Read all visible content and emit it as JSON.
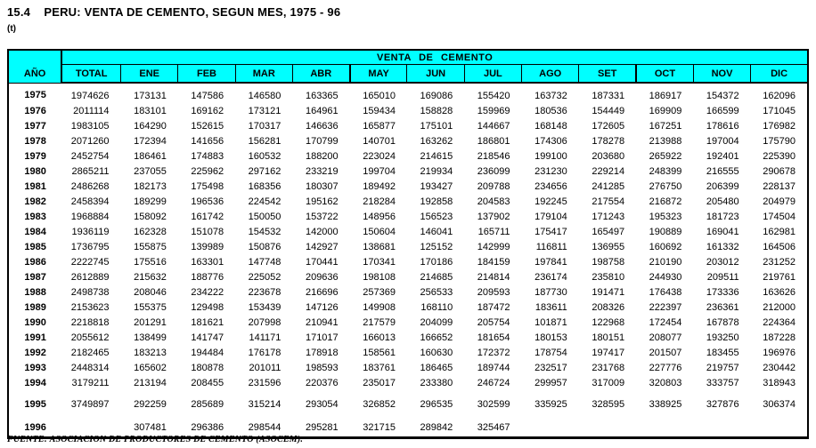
{
  "page": {
    "title": "15.4    PERU: VENTA DE CEMENTO, SEGUN MES, 1975 - 96",
    "unit": "(t)",
    "source_note": "FUENTE: ASOCIACION DE PRODUCTORES DE CEMENTO (ASOCEM)."
  },
  "colors": {
    "header_background": "#00FFFF",
    "border": "#000000",
    "text": "#000000"
  },
  "table": {
    "group_header": "VENTA DE CEMENTO",
    "columns": [
      "AÑO",
      "TOTAL",
      "ENE",
      "FEB",
      "MAR",
      "ABR",
      "MAY",
      "JUN",
      "JUL",
      "AGO",
      "SET",
      "OCT",
      "NOV",
      "DIC"
    ],
    "rows": [
      [
        "1975",
        "1974626",
        "173131",
        "147586",
        "146580",
        "163365",
        "165010",
        "169086",
        "155420",
        "163732",
        "187331",
        "186917",
        "154372",
        "162096"
      ],
      [
        "1976",
        "2011114",
        "183101",
        "169162",
        "173121",
        "164961",
        "159434",
        "158828",
        "159969",
        "180536",
        "154449",
        "169909",
        "166599",
        "171045"
      ],
      [
        "1977",
        "1983105",
        "164290",
        "152615",
        "170317",
        "146636",
        "165877",
        "175101",
        "144667",
        "168148",
        "172605",
        "167251",
        "178616",
        "176982"
      ],
      [
        "1978",
        "2071260",
        "172394",
        "141656",
        "156281",
        "170799",
        "140701",
        "163262",
        "186801",
        "174306",
        "178278",
        "213988",
        "197004",
        "175790"
      ],
      [
        "1979",
        "2452754",
        "186461",
        "174883",
        "160532",
        "188200",
        "223024",
        "214615",
        "218546",
        "199100",
        "203680",
        "265922",
        "192401",
        "225390"
      ],
      [
        "1980",
        "2865211",
        "237055",
        "225962",
        "297162",
        "233219",
        "199704",
        "219934",
        "236099",
        "231230",
        "229214",
        "248399",
        "216555",
        "290678"
      ],
      [
        "1981",
        "2486268",
        "182173",
        "175498",
        "168356",
        "180307",
        "189492",
        "193427",
        "209788",
        "234656",
        "241285",
        "276750",
        "206399",
        "228137"
      ],
      [
        "1982",
        "2458394",
        "189299",
        "196536",
        "224542",
        "195162",
        "218284",
        "192858",
        "204583",
        "192245",
        "217554",
        "216872",
        "205480",
        "204979"
      ],
      [
        "1983",
        "1968884",
        "158092",
        "161742",
        "150050",
        "153722",
        "148956",
        "156523",
        "137902",
        "179104",
        "171243",
        "195323",
        "181723",
        "174504"
      ],
      [
        "1984",
        "1936119",
        "162328",
        "151078",
        "154532",
        "142000",
        "150604",
        "146041",
        "165711",
        "175417",
        "165497",
        "190889",
        "169041",
        "162981"
      ],
      [
        "1985",
        "1736795",
        "155875",
        "139989",
        "150876",
        "142927",
        "138681",
        "125152",
        "142999",
        "116811",
        "136955",
        "160692",
        "161332",
        "164506"
      ],
      [
        "1986",
        "2222745",
        "175516",
        "163301",
        "147748",
        "170441",
        "170341",
        "170186",
        "184159",
        "197841",
        "198758",
        "210190",
        "203012",
        "231252"
      ],
      [
        "1987",
        "2612889",
        "215632",
        "188776",
        "225052",
        "209636",
        "198108",
        "214685",
        "214814",
        "236174",
        "235810",
        "244930",
        "209511",
        "219761"
      ],
      [
        "1988",
        "2498738",
        "208046",
        "234222",
        "223678",
        "216696",
        "257369",
        "256533",
        "209593",
        "187730",
        "191471",
        "176438",
        "173336",
        "163626"
      ],
      [
        "1989",
        "2153623",
        "155375",
        "129498",
        "153439",
        "147126",
        "149908",
        "168110",
        "187472",
        "183611",
        "208326",
        "222397",
        "236361",
        "212000"
      ],
      [
        "1990",
        "2218818",
        "201291",
        "181621",
        "207998",
        "210941",
        "217579",
        "204099",
        "205754",
        "101871",
        "122968",
        "172454",
        "167878",
        "224364"
      ],
      [
        "1991",
        "2055612",
        "138499",
        "141747",
        "141171",
        "171017",
        "166013",
        "166652",
        "181654",
        "180153",
        "180151",
        "208077",
        "193250",
        "187228"
      ],
      [
        "1992",
        "2182465",
        "183213",
        "194484",
        "176178",
        "178918",
        "158561",
        "160630",
        "172372",
        "178754",
        "197417",
        "201507",
        "183455",
        "196976"
      ],
      [
        "1993",
        "2448314",
        "165602",
        "180878",
        "201011",
        "198593",
        "183761",
        "186465",
        "189744",
        "232517",
        "231768",
        "227776",
        "219757",
        "230442"
      ],
      [
        "1994",
        "3179211",
        "213194",
        "208455",
        "231596",
        "220376",
        "235017",
        "233380",
        "246724",
        "299957",
        "317009",
        "320803",
        "333757",
        "318943"
      ],
      [
        "1995",
        "3749897",
        "292259",
        "285689",
        "315214",
        "293054",
        "326852",
        "296535",
        "302599",
        "335925",
        "328595",
        "338925",
        "327876",
        "306374"
      ],
      [
        "1996",
        "",
        "307481",
        "296386",
        "298544",
        "295281",
        "321715",
        "289842",
        "325467",
        "",
        "",
        "",
        "",
        ""
      ]
    ]
  }
}
